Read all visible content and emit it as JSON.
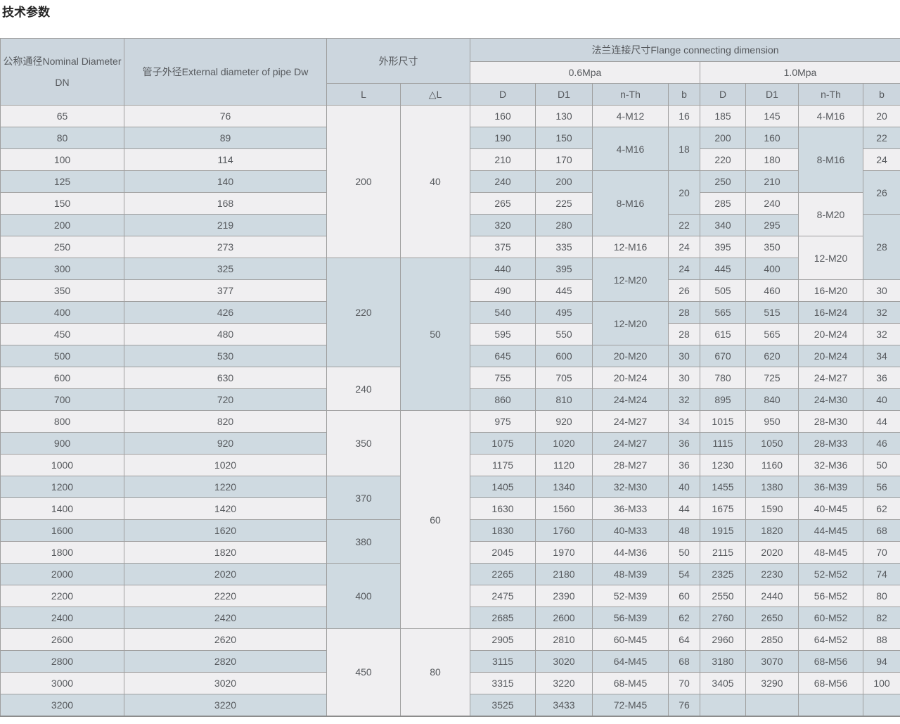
{
  "page": {
    "title": "技术参数"
  },
  "table": {
    "header": {
      "dn": "公称通径Nominal Diameter DN",
      "dw": "管子外径External diameter of pipe Dw",
      "dims": "外形尺寸",
      "flange": "法兰连接尺寸Flange connecting dimension",
      "p06": "0.6Mpa",
      "p10": "1.0Mpa",
      "l": "L",
      "dl": "△L",
      "d": "D",
      "d1": "D1",
      "nth": "n-Th",
      "b": "b"
    },
    "rows": [
      [
        "65",
        "76",
        [
          "200",
          7
        ],
        [
          "40",
          7
        ],
        "160",
        "130",
        "4-M12",
        "16",
        "185",
        "145",
        "4-M16",
        "20"
      ],
      [
        "80",
        "89",
        "190",
        "150",
        [
          "4-M16",
          2
        ],
        [
          "18",
          2
        ],
        "200",
        "160",
        [
          "8-M16",
          3
        ],
        "22"
      ],
      [
        "100",
        "114",
        "210",
        "170",
        "220",
        "180",
        "24"
      ],
      [
        "125",
        "140",
        "240",
        "200",
        [
          "8-M16",
          3
        ],
        [
          "20",
          2
        ],
        "250",
        "210",
        [
          "26",
          2
        ]
      ],
      [
        "150",
        "168",
        "265",
        "225",
        "285",
        "240",
        [
          "8-M20",
          2
        ]
      ],
      [
        "200",
        "219",
        "320",
        "280",
        "22",
        "340",
        "295",
        [
          "28",
          3
        ]
      ],
      [
        "250",
        "273",
        "375",
        "335",
        "12-M16",
        "24",
        "395",
        "350",
        [
          "12-M20",
          2
        ]
      ],
      [
        "300",
        "325",
        [
          "220",
          5
        ],
        [
          "50",
          7
        ],
        "440",
        "395",
        [
          "12-M20",
          2
        ],
        "24",
        "445",
        "400"
      ],
      [
        "350",
        "377",
        "490",
        "445",
        "26",
        "505",
        "460",
        "16-M20",
        "30"
      ],
      [
        "400",
        "426",
        "540",
        "495",
        [
          "12-M20",
          2
        ],
        "28",
        "565",
        "515",
        "16-M24",
        "32"
      ],
      [
        "450",
        "480",
        "595",
        "550",
        "28",
        "615",
        "565",
        "20-M24",
        "32"
      ],
      [
        "500",
        "530",
        "645",
        "600",
        "20-M20",
        "30",
        "670",
        "620",
        "20-M24",
        "34"
      ],
      [
        "600",
        "630",
        [
          "240",
          2
        ],
        "755",
        "705",
        "20-M24",
        "30",
        "780",
        "725",
        "24-M27",
        "36"
      ],
      [
        "700",
        "720",
        "860",
        "810",
        "24-M24",
        "32",
        "895",
        "840",
        "24-M30",
        "40"
      ],
      [
        "800",
        "820",
        [
          "350",
          3
        ],
        [
          "60",
          10
        ],
        "975",
        "920",
        "24-M27",
        "34",
        "1015",
        "950",
        "28-M30",
        "44"
      ],
      [
        "900",
        "920",
        "1075",
        "1020",
        "24-M27",
        "36",
        "1115",
        "1050",
        "28-M33",
        "46"
      ],
      [
        "1000",
        "1020",
        "1175",
        "1120",
        "28-M27",
        "36",
        "1230",
        "1160",
        "32-M36",
        "50"
      ],
      [
        "1200",
        "1220",
        [
          "370",
          2
        ],
        "1405",
        "1340",
        "32-M30",
        "40",
        "1455",
        "1380",
        "36-M39",
        "56"
      ],
      [
        "1400",
        "1420",
        "1630",
        "1560",
        "36-M33",
        "44",
        "1675",
        "1590",
        "40-M45",
        "62"
      ],
      [
        "1600",
        "1620",
        [
          "380",
          2
        ],
        "1830",
        "1760",
        "40-M33",
        "48",
        "1915",
        "1820",
        "44-M45",
        "68"
      ],
      [
        "1800",
        "1820",
        "2045",
        "1970",
        "44-M36",
        "50",
        "2115",
        "2020",
        "48-M45",
        "70"
      ],
      [
        "2000",
        "2020",
        [
          "400",
          3
        ],
        "2265",
        "2180",
        "48-M39",
        "54",
        "2325",
        "2230",
        "52-M52",
        "74"
      ],
      [
        "2200",
        "2220",
        "2475",
        "2390",
        "52-M39",
        "60",
        "2550",
        "2440",
        "56-M52",
        "80"
      ],
      [
        "2400",
        "2420",
        "2685",
        "2600",
        "56-M39",
        "62",
        "2760",
        "2650",
        "60-M52",
        "82"
      ],
      [
        "2600",
        "2620",
        [
          "450",
          4
        ],
        [
          "80",
          4
        ],
        "2905",
        "2810",
        "60-M45",
        "64",
        "2960",
        "2850",
        "64-M52",
        "88"
      ],
      [
        "2800",
        "2820",
        "3115",
        "3020",
        "64-M45",
        "68",
        "3180",
        "3070",
        "68-M56",
        "94"
      ],
      [
        "3000",
        "3020",
        "3315",
        "3220",
        "68-M45",
        "70",
        "3405",
        "3290",
        "68-M56",
        "100"
      ],
      [
        "3200",
        "3220",
        "3525",
        "3433",
        "72-M45",
        "76",
        "",
        "",
        "",
        ""
      ]
    ]
  }
}
